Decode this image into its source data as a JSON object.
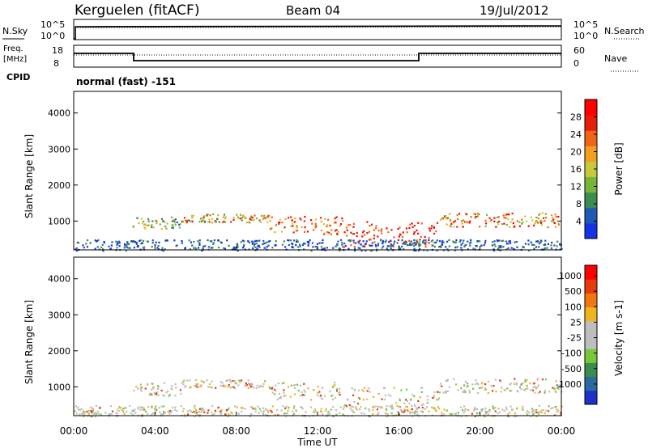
{
  "header": {
    "station": "Kerguelen (fitACF)",
    "beam": "Beam 04",
    "date": "19/Jul/2012"
  },
  "noise_panel": {
    "left_label": "N.Sky",
    "right_label": "N.Search",
    "left_ticks": [
      "10^5",
      "10^0"
    ],
    "right_ticks": [
      "10^5",
      "10^0"
    ]
  },
  "freq_panel": {
    "left_label_1": "Freq.",
    "left_label_2": "[MHz]",
    "left_ticks": [
      "18",
      "8"
    ],
    "right_label": "Nave",
    "right_ticks": [
      "60",
      "0"
    ]
  },
  "cpid": {
    "label": "CPID",
    "value": "normal (fast) -151"
  },
  "chart_data": [
    {
      "type": "heatmap",
      "name": "power",
      "ylabel": "Slant Range [km]",
      "yticks": [
        "1000",
        "2000",
        "3000",
        "4000"
      ],
      "ylim": [
        200,
        4600
      ],
      "colorbar": {
        "label": "Power [dB]",
        "ticks": [
          "4",
          "8",
          "12",
          "16",
          "20",
          "24",
          "28"
        ],
        "colors": [
          "#1432e6",
          "#1e5ab4",
          "#3c8c50",
          "#78b43c",
          "#c8c83c",
          "#f0a01e",
          "#f06414",
          "#e61e0a",
          "#ff0000"
        ]
      }
    },
    {
      "type": "heatmap",
      "name": "velocity",
      "ylabel": "Slant Range [km]",
      "yticks": [
        "1000",
        "2000",
        "3000",
        "4000"
      ],
      "ylim": [
        200,
        4600
      ],
      "colorbar": {
        "label": "Velocity [m s-1]",
        "ticks": [
          "1000",
          "500",
          "100",
          "25",
          "-25",
          "-100",
          "-500",
          "-1000"
        ],
        "colors": [
          "#1e32c8",
          "#2a6aa0",
          "#3c8c50",
          "#78c83c",
          "#bebebe",
          "#bebebe",
          "#f0b41e",
          "#f07814",
          "#e63c0a",
          "#ff0000"
        ]
      }
    }
  ],
  "time_axis": {
    "label": "Time UT",
    "ticks": [
      "00:00",
      "04:00",
      "08:00",
      "12:00",
      "16:00",
      "20:00",
      "00:00"
    ]
  }
}
